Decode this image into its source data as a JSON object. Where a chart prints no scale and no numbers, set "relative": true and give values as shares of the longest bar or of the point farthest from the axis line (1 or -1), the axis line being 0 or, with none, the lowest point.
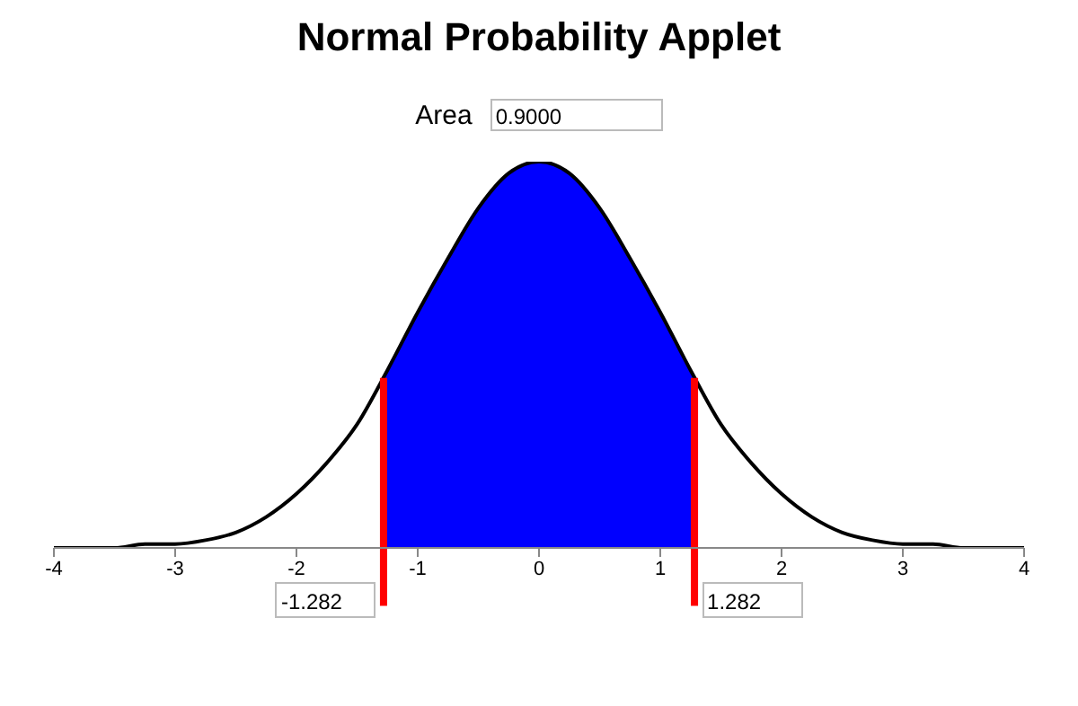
{
  "chart_data": {
    "type": "line",
    "title": "Normal Probability Applet",
    "annotations": [
      "Area",
      "0.9000"
    ],
    "relative": true,
    "xlim": [
      -4,
      4
    ],
    "xticks": [
      -4,
      -3,
      -2,
      -1,
      0,
      1,
      2,
      3,
      4
    ],
    "grid": false,
    "legend": false,
    "marker": "none",
    "series": [
      {
        "type": "area",
        "color": "#0000ff",
        "x": [
          -1.282,
          -1.25,
          -1,
          -0.75,
          -0.5,
          -0.25,
          0,
          0.25,
          0.5,
          0.75,
          1,
          1.25,
          1.282
        ],
        "values": [
          0.44,
          0.46,
          0.61,
          0.75,
          0.88,
          0.97,
          1,
          0.97,
          0.88,
          0.75,
          0.61,
          0.46,
          0.44
        ]
      },
      {
        "type": "line",
        "color": "#000000",
        "x": [
          -4,
          -3.75,
          -3.5,
          -3.25,
          -3,
          -2.75,
          -2.5,
          -2.25,
          -2,
          -1.75,
          -1.5,
          -1.25,
          -1,
          -0.75,
          -0.5,
          -0.25,
          0,
          0.25,
          0.5,
          0.75,
          1,
          1.25,
          1.5,
          1.75,
          2,
          2.25,
          2.5,
          2.75,
          3,
          3.25,
          3.5,
          3.75,
          4
        ],
        "values": [
          0,
          0,
          0,
          0.01,
          0.01,
          0.02,
          0.04,
          0.08,
          0.14,
          0.22,
          0.32,
          0.46,
          0.61,
          0.75,
          0.88,
          0.97,
          1,
          0.97,
          0.88,
          0.75,
          0.61,
          0.46,
          0.32,
          0.22,
          0.14,
          0.08,
          0.04,
          0.02,
          0.01,
          0.01,
          0,
          0,
          0
        ]
      }
    ],
    "ref_lines": [
      {
        "axis": "x",
        "value": -1.282,
        "label": "-1.282",
        "color": "#ff0000"
      },
      {
        "axis": "x",
        "value": 1.282,
        "label": "1.282",
        "color": "#ff0000"
      }
    ]
  }
}
